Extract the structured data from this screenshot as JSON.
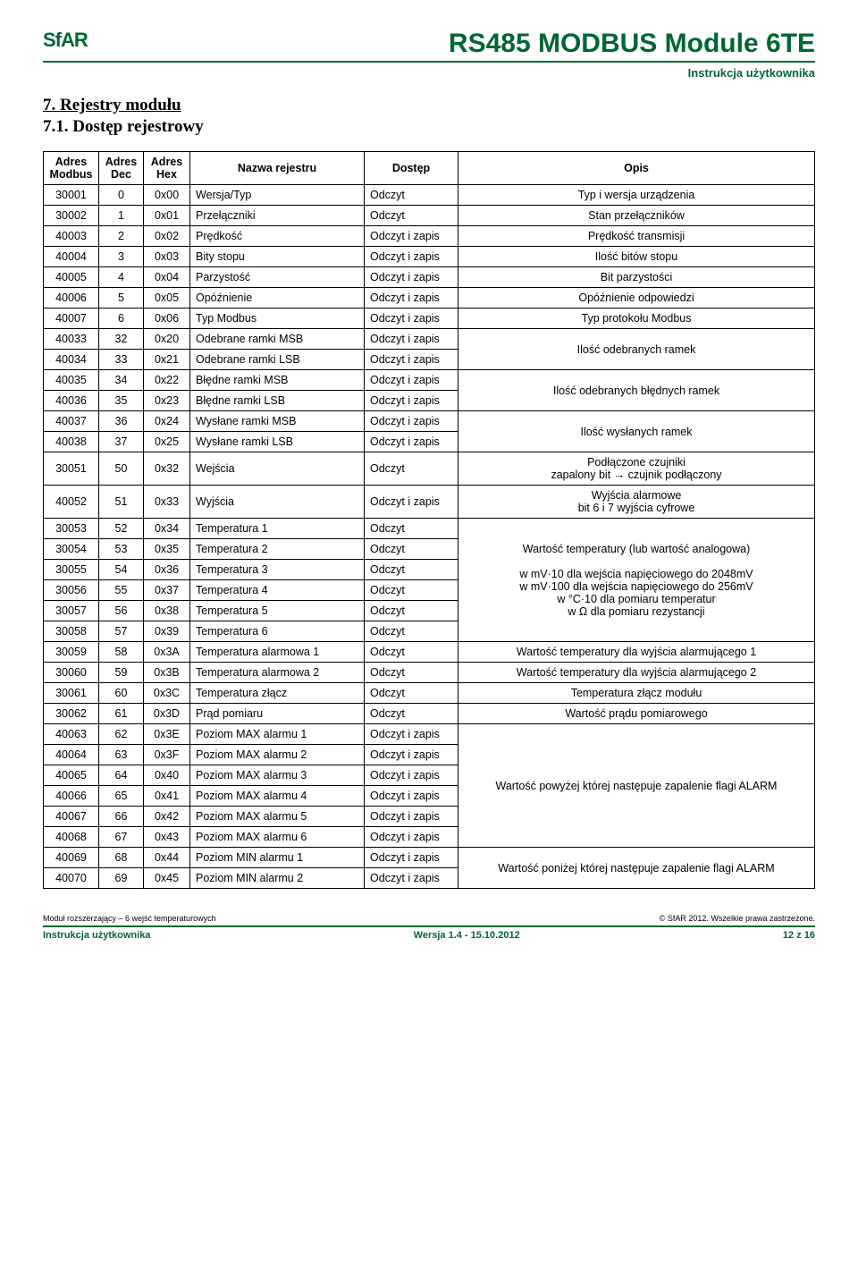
{
  "header": {
    "logo_text": "SfAR",
    "title": "RS485 MODBUS Module 6TE",
    "subtitle": "Instrukcja użytkownika"
  },
  "section": {
    "heading": "7.  Rejestry modułu",
    "subheading": "7.1.  Dostęp rejestrowy"
  },
  "table": {
    "headers": {
      "modbus": "Adres Modbus",
      "dec": "Adres Dec",
      "hex": "Adres Hex",
      "name": "Nazwa rejestru",
      "access": "Dostęp",
      "desc": "Opis"
    },
    "rows": [
      {
        "modbus": "30001",
        "dec": "0",
        "hex": "0x00",
        "name": "Wersja/Typ",
        "access": "Odczyt",
        "desc": "Typ i wersja urządzenia",
        "span": 1
      },
      {
        "modbus": "30002",
        "dec": "1",
        "hex": "0x01",
        "name": "Przełączniki",
        "access": "Odczyt",
        "desc": "Stan przełączników",
        "span": 1
      },
      {
        "modbus": "40003",
        "dec": "2",
        "hex": "0x02",
        "name": "Prędkość",
        "access": "Odczyt i zapis",
        "desc": "Prędkość transmisji",
        "span": 1
      },
      {
        "modbus": "40004",
        "dec": "3",
        "hex": "0x03",
        "name": "Bity stopu",
        "access": "Odczyt i zapis",
        "desc": "Ilość bitów stopu",
        "span": 1
      },
      {
        "modbus": "40005",
        "dec": "4",
        "hex": "0x04",
        "name": "Parzystość",
        "access": "Odczyt i zapis",
        "desc": "Bit parzystości",
        "span": 1
      },
      {
        "modbus": "40006",
        "dec": "5",
        "hex": "0x05",
        "name": "Opóźnienie",
        "access": "Odczyt i zapis",
        "desc": "Opóźnienie odpowiedzi",
        "span": 1
      },
      {
        "modbus": "40007",
        "dec": "6",
        "hex": "0x06",
        "name": "Typ Modbus",
        "access": "Odczyt i zapis",
        "desc": "Typ protokołu Modbus",
        "span": 1
      },
      {
        "modbus": "40033",
        "dec": "32",
        "hex": "0x20",
        "name": "Odebrane ramki MSB",
        "access": "Odczyt i zapis",
        "desc": "Ilość odebranych ramek",
        "span": 2
      },
      {
        "modbus": "40034",
        "dec": "33",
        "hex": "0x21",
        "name": "Odebrane ramki LSB",
        "access": "Odczyt i zapis"
      },
      {
        "modbus": "40035",
        "dec": "34",
        "hex": "0x22",
        "name": "Błędne ramki MSB",
        "access": "Odczyt i zapis",
        "desc": "Ilość odebranych błędnych ramek",
        "span": 2
      },
      {
        "modbus": "40036",
        "dec": "35",
        "hex": "0x23",
        "name": "Błędne ramki LSB",
        "access": "Odczyt i zapis"
      },
      {
        "modbus": "40037",
        "dec": "36",
        "hex": "0x24",
        "name": "Wysłane ramki MSB",
        "access": "Odczyt i zapis",
        "desc": "Ilość wysłanych ramek",
        "span": 2
      },
      {
        "modbus": "40038",
        "dec": "37",
        "hex": "0x25",
        "name": "Wysłane ramki LSB",
        "access": "Odczyt i zapis"
      },
      {
        "modbus": "30051",
        "dec": "50",
        "hex": "0x32",
        "name": "Wejścia",
        "access": "Odczyt",
        "desc": "Podłączone czujniki\nzapalony bit → czujnik podłączony",
        "span": 1
      },
      {
        "modbus": "40052",
        "dec": "51",
        "hex": "0x33",
        "name": "Wyjścia",
        "access": "Odczyt i zapis",
        "desc": "Wyjścia alarmowe\nbit 6 i 7 wyjścia cyfrowe",
        "span": 1
      },
      {
        "modbus": "30053",
        "dec": "52",
        "hex": "0x34",
        "name": "Temperatura 1",
        "access": "Odczyt",
        "desc": "Wartość temperatury (lub wartość analogowa)\n\nw mV·10 dla wejścia napięciowego do 2048mV\nw mV·100 dla wejścia napięciowego do 256mV\nw °C·10 dla pomiaru temperatur\nw Ω dla pomiaru rezystancji",
        "span": 6
      },
      {
        "modbus": "30054",
        "dec": "53",
        "hex": "0x35",
        "name": "Temperatura 2",
        "access": "Odczyt"
      },
      {
        "modbus": "30055",
        "dec": "54",
        "hex": "0x36",
        "name": "Temperatura 3",
        "access": "Odczyt"
      },
      {
        "modbus": "30056",
        "dec": "55",
        "hex": "0x37",
        "name": "Temperatura 4",
        "access": "Odczyt"
      },
      {
        "modbus": "30057",
        "dec": "56",
        "hex": "0x38",
        "name": "Temperatura 5",
        "access": "Odczyt"
      },
      {
        "modbus": "30058",
        "dec": "57",
        "hex": "0x39",
        "name": "Temperatura 6",
        "access": "Odczyt"
      },
      {
        "modbus": "30059",
        "dec": "58",
        "hex": "0x3A",
        "name": "Temperatura alarmowa 1",
        "access": "Odczyt",
        "desc": "Wartość temperatury dla wyjścia alarmującego 1",
        "span": 1
      },
      {
        "modbus": "30060",
        "dec": "59",
        "hex": "0x3B",
        "name": "Temperatura alarmowa 2",
        "access": "Odczyt",
        "desc": "Wartość temperatury dla wyjścia alarmującego 2",
        "span": 1
      },
      {
        "modbus": "30061",
        "dec": "60",
        "hex": "0x3C",
        "name": "Temperatura złącz",
        "access": "Odczyt",
        "desc": "Temperatura złącz modułu",
        "span": 1
      },
      {
        "modbus": "30062",
        "dec": "61",
        "hex": "0x3D",
        "name": "Prąd pomiaru",
        "access": "Odczyt",
        "desc": "Wartość prądu pomiarowego",
        "span": 1
      },
      {
        "modbus": "40063",
        "dec": "62",
        "hex": "0x3E",
        "name": "Poziom MAX alarmu 1",
        "access": "Odczyt i zapis",
        "desc": "Wartość powyżej której następuje zapalenie flagi ALARM",
        "span": 6
      },
      {
        "modbus": "40064",
        "dec": "63",
        "hex": "0x3F",
        "name": "Poziom MAX alarmu 2",
        "access": "Odczyt i zapis"
      },
      {
        "modbus": "40065",
        "dec": "64",
        "hex": "0x40",
        "name": "Poziom MAX alarmu 3",
        "access": "Odczyt i zapis"
      },
      {
        "modbus": "40066",
        "dec": "65",
        "hex": "0x41",
        "name": "Poziom MAX alarmu 4",
        "access": "Odczyt i zapis"
      },
      {
        "modbus": "40067",
        "dec": "66",
        "hex": "0x42",
        "name": "Poziom MAX alarmu 5",
        "access": "Odczyt i zapis"
      },
      {
        "modbus": "40068",
        "dec": "67",
        "hex": "0x43",
        "name": "Poziom MAX alarmu 6",
        "access": "Odczyt i zapis"
      },
      {
        "modbus": "40069",
        "dec": "68",
        "hex": "0x44",
        "name": "Poziom MIN alarmu 1",
        "access": "Odczyt i zapis",
        "desc": "Wartość poniżej której następuje zapalenie flagi ALARM",
        "span": 2
      },
      {
        "modbus": "40070",
        "dec": "69",
        "hex": "0x45",
        "name": "Poziom MIN alarmu 2",
        "access": "Odczyt i zapis"
      }
    ]
  },
  "footer": {
    "top_left": "Moduł rozszerzający – 6 wejść temperaturowych",
    "top_right": "© SfAR 2012. Wszelkie prawa zastrzeżone.",
    "bottom_left": "Instrukcja użytkownika",
    "bottom_center": "Wersja 1.4 - 15.10.2012",
    "bottom_right": "12 z 16"
  }
}
